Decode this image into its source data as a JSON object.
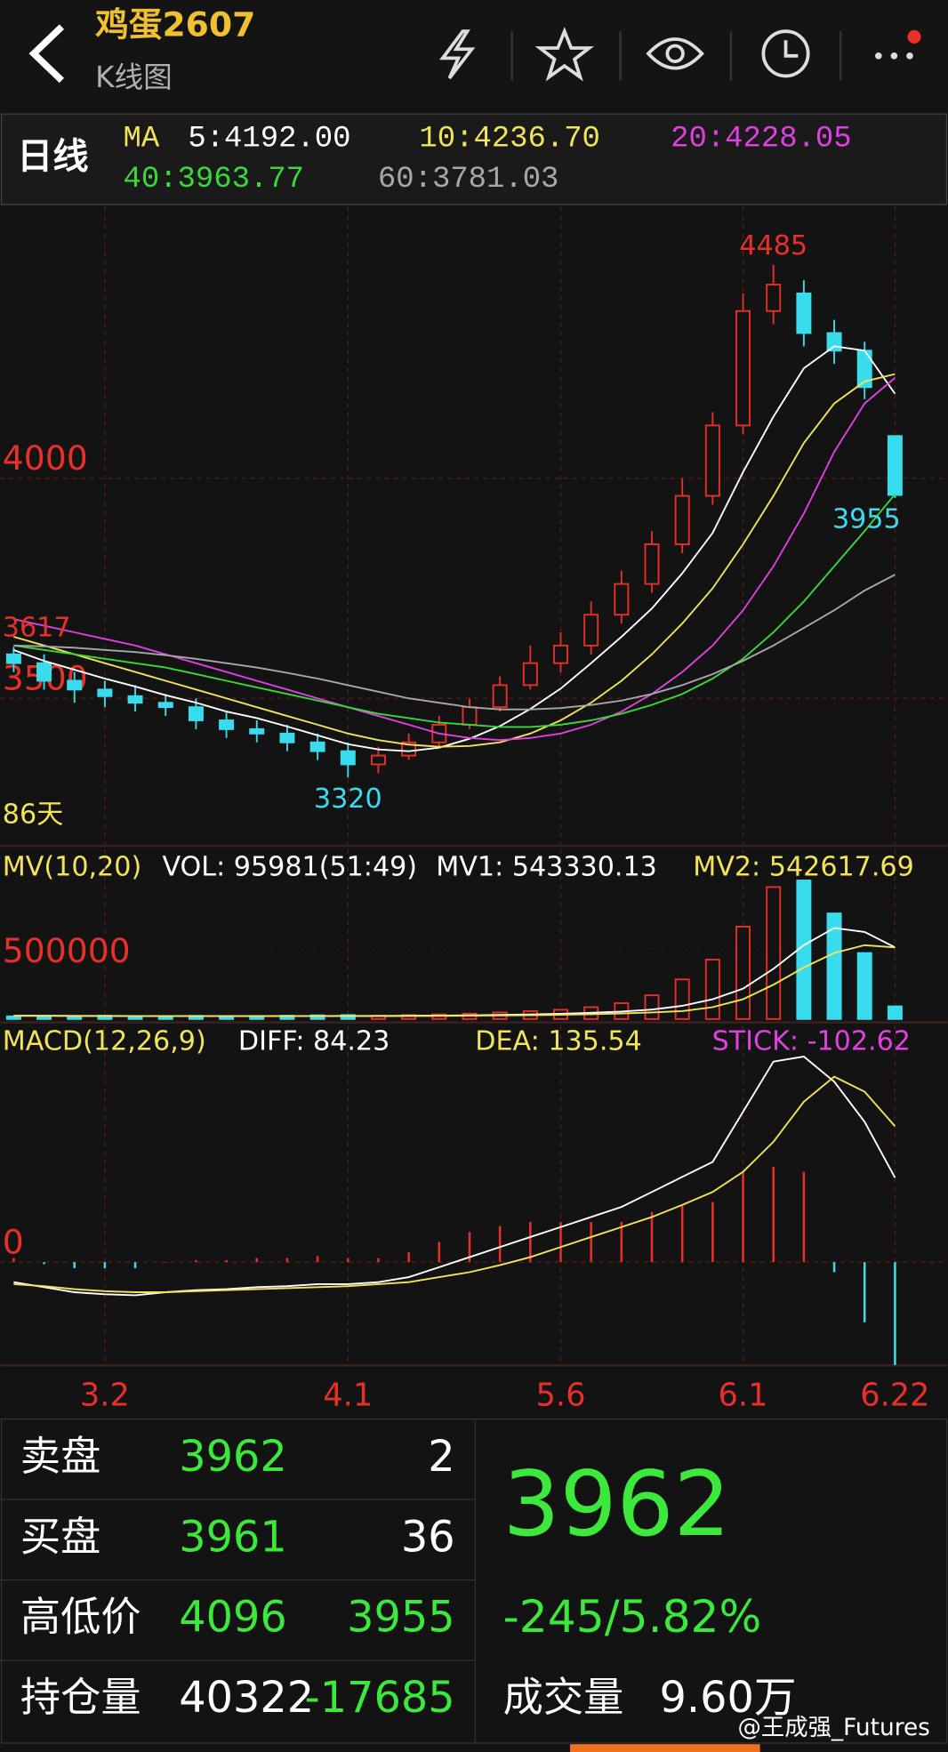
{
  "app_bar": {
    "title": "鸡蛋2607",
    "subtitle": "K线图"
  },
  "chart_data": [
    {
      "type": "candlestick",
      "period": "日线",
      "ma_label": "MA",
      "days_label": "86天",
      "categories": [
        null,
        null,
        null,
        "3.2",
        null,
        null,
        null,
        null,
        null,
        null,
        null,
        "4.1",
        null,
        null,
        null,
        null,
        null,
        null,
        "5.6",
        null,
        null,
        null,
        null,
        null,
        "6.1",
        null,
        null,
        null,
        null,
        "6.22"
      ],
      "open": [
        3600,
        3580,
        3540,
        3520,
        3505,
        3490,
        3480,
        3450,
        3430,
        3420,
        3400,
        3380,
        3350,
        3370,
        3400,
        3440,
        3480,
        3530,
        3580,
        3620,
        3690,
        3760,
        3850,
        3960,
        4120,
        4380,
        4420,
        4330,
        4290,
        4096
      ],
      "close": [
        3580,
        3540,
        3520,
        3505,
        3490,
        3480,
        3450,
        3430,
        3420,
        3400,
        3380,
        3350,
        3370,
        3400,
        3440,
        3480,
        3530,
        3580,
        3620,
        3690,
        3760,
        3850,
        3960,
        4120,
        4380,
        4440,
        4330,
        4290,
        4207,
        3962
      ],
      "high": [
        3617,
        3600,
        3560,
        3540,
        3530,
        3510,
        3500,
        3470,
        3450,
        3440,
        3420,
        3400,
        3390,
        3420,
        3460,
        3500,
        3550,
        3620,
        3650,
        3720,
        3790,
        3880,
        4000,
        4150,
        4420,
        4485,
        4450,
        4360,
        4310,
        4096
      ],
      "low": [
        3560,
        3520,
        3490,
        3480,
        3470,
        3460,
        3430,
        3410,
        3400,
        3380,
        3360,
        3320,
        3330,
        3360,
        3390,
        3430,
        3470,
        3520,
        3560,
        3600,
        3670,
        3740,
        3830,
        3940,
        4100,
        4350,
        4300,
        4260,
        4180,
        3955
      ],
      "up_color": "#e8302a",
      "down_color": "#38dcec",
      "ylim": [
        3170,
        4617
      ],
      "yticks": [
        3500,
        4000
      ],
      "annotations": [
        4485,
        3320,
        3955,
        3617
      ],
      "overlays": [
        {
          "label": "5:4192.00",
          "color": "#ffffff",
          "values": [
            3610,
            3585,
            3565,
            3545,
            3527,
            3507,
            3490,
            3470,
            3455,
            3436,
            3416,
            3396,
            3384,
            3380,
            3388,
            3408,
            3437,
            3476,
            3522,
            3580,
            3640,
            3704,
            3784,
            3876,
            4014,
            4140,
            4250,
            4300,
            4290,
            4192
          ]
        },
        {
          "label": "10:4236.70",
          "color": "#f2e35a",
          "values": [
            3640,
            3620,
            3600,
            3580,
            3560,
            3540,
            3520,
            3500,
            3480,
            3460,
            3440,
            3420,
            3405,
            3395,
            3390,
            3392,
            3400,
            3420,
            3450,
            3490,
            3540,
            3600,
            3670,
            3750,
            3850,
            3960,
            4080,
            4170,
            4220,
            4236.7
          ]
        },
        {
          "label": "20:4228.05",
          "color": "#e040e0",
          "values": [
            3680,
            3665,
            3650,
            3635,
            3620,
            3600,
            3580,
            3560,
            3540,
            3520,
            3500,
            3480,
            3460,
            3440,
            3420,
            3410,
            3405,
            3410,
            3420,
            3440,
            3470,
            3510,
            3560,
            3620,
            3700,
            3800,
            3920,
            4060,
            4170,
            4228.05
          ]
        },
        {
          "label": "40:3963.77",
          "color": "#3ad83a",
          "values": [
            3620,
            3610,
            3600,
            3590,
            3580,
            3570,
            3555,
            3540,
            3525,
            3510,
            3495,
            3480,
            3465,
            3455,
            3445,
            3440,
            3435,
            3435,
            3440,
            3450,
            3465,
            3485,
            3510,
            3545,
            3590,
            3650,
            3720,
            3800,
            3880,
            3963.77
          ]
        },
        {
          "label": "60:3781.03",
          "color": "#a8a8a8",
          "values": [
            3620,
            3618,
            3615,
            3610,
            3605,
            3598,
            3590,
            3580,
            3570,
            3558,
            3545,
            3530,
            3515,
            3500,
            3490,
            3480,
            3475,
            3475,
            3478,
            3485,
            3495,
            3510,
            3530,
            3555,
            3585,
            3620,
            3660,
            3700,
            3745,
            3781.03
          ]
        }
      ]
    },
    {
      "type": "bar",
      "title": "MV(10,20)",
      "vol_label": "VOL: 95981(51:49)",
      "values": [
        20000,
        22000,
        18000,
        25000,
        20000,
        22000,
        24000,
        20000,
        23000,
        25000,
        28000,
        30000,
        26000,
        30000,
        35000,
        40000,
        50000,
        60000,
        70000,
        90000,
        120000,
        180000,
        300000,
        450000,
        700000,
        1000000,
        1050000,
        800000,
        500000,
        95981
      ],
      "ylim": [
        0,
        1160000
      ],
      "yticks": [
        500000
      ],
      "lines": [
        {
          "label": "MV1: 543330.13",
          "color": "#ffffff",
          "values": [
            25000,
            25000,
            24000,
            24000,
            23000,
            23000,
            23000,
            22000,
            22000,
            23000,
            23000,
            24000,
            24000,
            25000,
            26000,
            28000,
            31000,
            35000,
            40000,
            47000,
            57000,
            72000,
            100000,
            150000,
            230000,
            380000,
            560000,
            690000,
            660000,
            543330.13
          ]
        },
        {
          "label": "MV2: 542617.69",
          "color": "#f2e35a",
          "values": [
            24000,
            24000,
            24000,
            23000,
            23000,
            23000,
            23000,
            23000,
            22000,
            22000,
            22000,
            23000,
            23000,
            23000,
            24000,
            25000,
            27000,
            29000,
            32000,
            36000,
            42000,
            50000,
            60000,
            90000,
            150000,
            260000,
            390000,
            500000,
            560000,
            542617.69
          ]
        }
      ]
    },
    {
      "type": "macd",
      "title": "MACD(12,26,9)",
      "ylim": [
        -103,
        228
      ],
      "yticks": [
        0
      ],
      "lines": [
        {
          "label": "DIFF: 84.23",
          "color": "#ffffff",
          "values": [
            -20,
            -25,
            -30,
            -32,
            -33,
            -30,
            -28,
            -27,
            -25,
            -24,
            -22,
            -22,
            -20,
            -15,
            -5,
            5,
            15,
            25,
            35,
            45,
            55,
            70,
            85,
            100,
            150,
            200,
            205,
            180,
            140,
            84.23
          ]
        },
        {
          "label": "DEA: 135.54",
          "color": "#f2e35a",
          "values": [
            -22,
            -24,
            -27,
            -29,
            -30,
            -30,
            -29,
            -28,
            -27,
            -26,
            -25,
            -24,
            -22,
            -20,
            -15,
            -10,
            -3,
            5,
            15,
            25,
            35,
            45,
            57,
            70,
            90,
            120,
            160,
            185,
            170,
            135.54
          ]
        }
      ],
      "stick": {
        "label": "STICK: -102.62",
        "color": "#e040e0",
        "up_color": "#e8302a",
        "down_color": "#38dcec",
        "values": [
          4,
          -2,
          -6,
          -6,
          -6,
          0,
          2,
          2,
          4,
          4,
          6,
          4,
          4,
          10,
          20,
          30,
          36,
          40,
          40,
          40,
          40,
          50,
          56,
          60,
          90,
          95,
          90,
          -10,
          -60,
          -102.62
        ]
      }
    }
  ],
  "quote": {
    "rows": [
      [
        "卖盘",
        3962,
        2
      ],
      [
        "买盘",
        3961,
        36
      ],
      [
        "高低价",
        4096,
        3955
      ],
      [
        "持仓量",
        40322,
        -17685
      ]
    ],
    "last": 3962,
    "change": "-245/5.82%",
    "volume_label": "成交量",
    "volume": "9.60万"
  },
  "watermark": "@王成强_Futures"
}
